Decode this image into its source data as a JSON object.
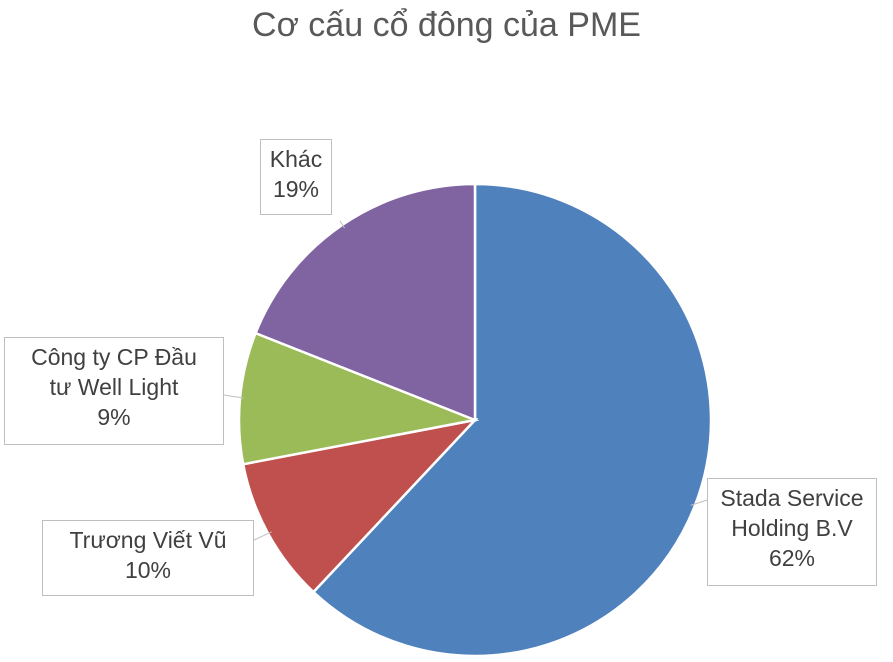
{
  "chart_data": {
    "type": "pie",
    "title": "Cơ cấu cổ đông của PME",
    "slices": [
      {
        "name": "Stada Service Holding B.V",
        "name_lines": [
          "Stada Service",
          "Holding B.V"
        ],
        "value": 62,
        "label": "62%",
        "color": "#4F81BD"
      },
      {
        "name": "Trương Viết Vũ",
        "name_lines": [
          "Trương Viết Vũ"
        ],
        "value": 10,
        "label": "10%",
        "color": "#C0504D"
      },
      {
        "name": "Công ty CP Đầu tư Well Light",
        "name_lines": [
          "Công ty CP Đầu",
          "tư Well Light"
        ],
        "value": 9,
        "label": "9%",
        "color": "#9BBB59"
      },
      {
        "name": "Khác",
        "name_lines": [
          "Khác"
        ],
        "value": 19,
        "label": "19%",
        "color": "#8064A2"
      }
    ],
    "start_angle": "top",
    "direction": "clockwise",
    "legend": "none"
  }
}
